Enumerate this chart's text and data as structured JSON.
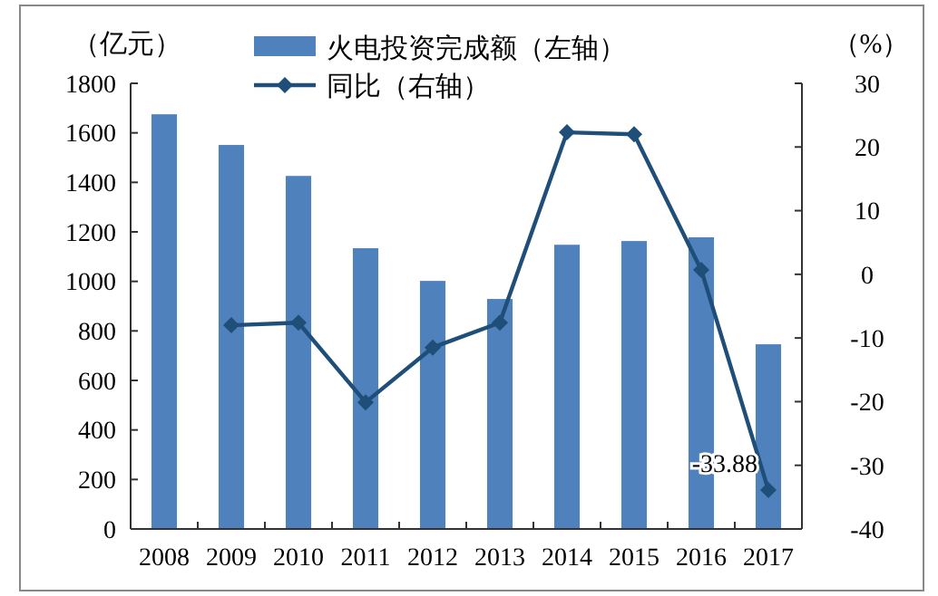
{
  "chart_data": {
    "type": "bar",
    "categories": [
      "2008",
      "2009",
      "2010",
      "2011",
      "2012",
      "2013",
      "2014",
      "2015",
      "2016",
      "2017"
    ],
    "ylabel": "（亿元）",
    "y2label": "（%）",
    "ylim": [
      0,
      1800
    ],
    "yticks": [
      0,
      200,
      400,
      600,
      800,
      1000,
      1200,
      1400,
      1600,
      1800
    ],
    "y2lim": [
      -40,
      30
    ],
    "y2ticks": [
      -40,
      -30,
      -20,
      -10,
      0,
      10,
      20,
      30
    ],
    "legend": "top",
    "grid": false,
    "series": [
      {
        "name": "火电投资完成额（左轴）",
        "color": "#4f81bd",
        "values": [
          1675,
          1551,
          1426,
          1134,
          1002,
          929,
          1148,
          1163,
          1178,
          746
        ]
      },
      {
        "name": "同比（右轴）",
        "type": "line",
        "axis": "y2",
        "color": "#1f4e79",
        "marker": "diamond",
        "values": [
          null,
          -8.0,
          -7.6,
          -20.1,
          -11.5,
          -7.6,
          22.3,
          22.0,
          0.7,
          -33.88
        ]
      }
    ],
    "annotations": [
      {
        "text": "-33.88",
        "x": "2017",
        "y": -33.88
      }
    ]
  }
}
